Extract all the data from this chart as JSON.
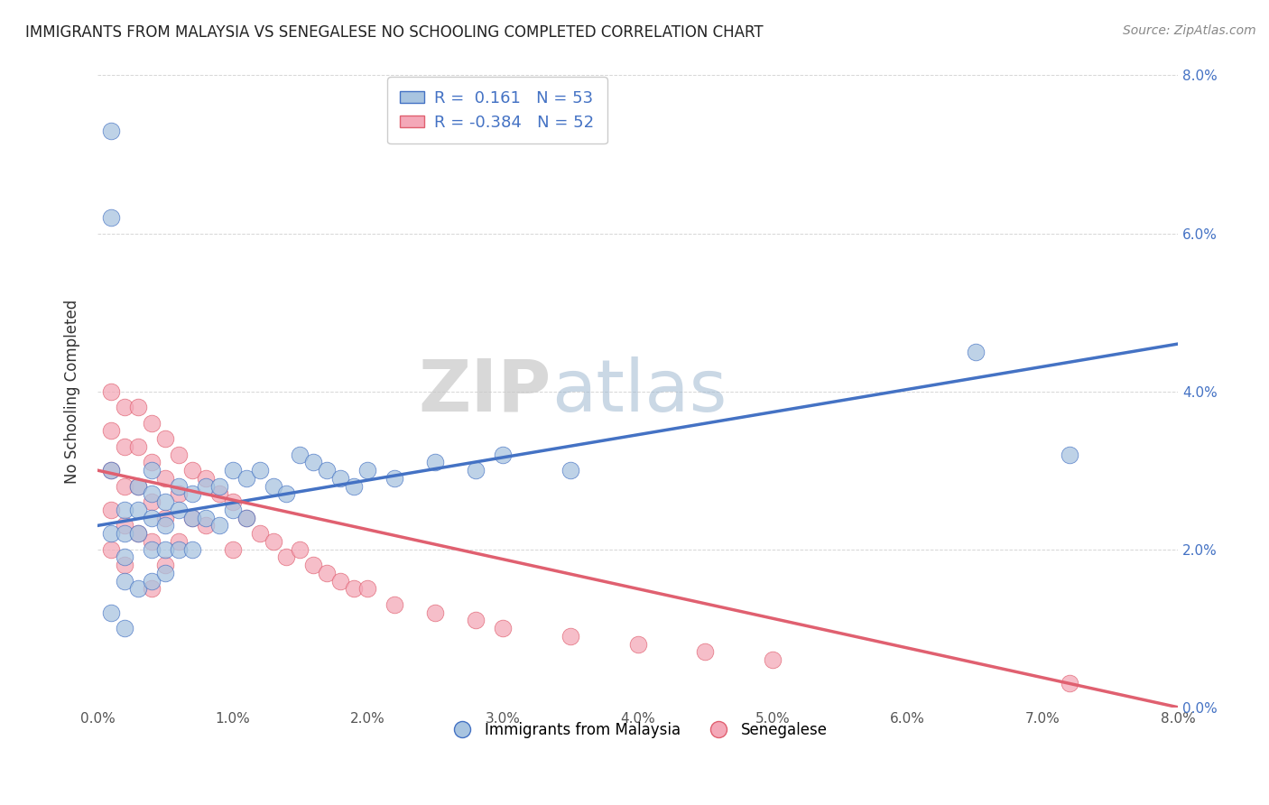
{
  "title": "IMMIGRANTS FROM MALAYSIA VS SENEGALESE NO SCHOOLING COMPLETED CORRELATION CHART",
  "source": "Source: ZipAtlas.com",
  "ylabel": "No Schooling Completed",
  "xlabel": "",
  "xlim": [
    0.0,
    0.08
  ],
  "ylim": [
    0.0,
    0.08
  ],
  "xticks": [
    0.0,
    0.01,
    0.02,
    0.03,
    0.04,
    0.05,
    0.06,
    0.07,
    0.08
  ],
  "yticks": [
    0.0,
    0.02,
    0.04,
    0.06,
    0.08
  ],
  "xtick_labels": [
    "0.0%",
    "1.0%",
    "2.0%",
    "3.0%",
    "4.0%",
    "5.0%",
    "6.0%",
    "7.0%",
    "8.0%"
  ],
  "ytick_labels": [
    "0.0%",
    "2.0%",
    "4.0%",
    "6.0%",
    "8.0%"
  ],
  "blue_R": 0.161,
  "blue_N": 53,
  "pink_R": -0.384,
  "pink_N": 52,
  "blue_color": "#a8c4e0",
  "pink_color": "#f4a8b8",
  "blue_line_color": "#4472c4",
  "pink_line_color": "#e06070",
  "legend_blue_label": "Immigrants from Malaysia",
  "legend_pink_label": "Senegalese",
  "watermark_zip": "ZIP",
  "watermark_atlas": "atlas",
  "blue_scatter_x": [
    0.001,
    0.001,
    0.001,
    0.001,
    0.001,
    0.002,
    0.002,
    0.002,
    0.002,
    0.002,
    0.003,
    0.003,
    0.003,
    0.003,
    0.004,
    0.004,
    0.004,
    0.004,
    0.004,
    0.005,
    0.005,
    0.005,
    0.005,
    0.006,
    0.006,
    0.006,
    0.007,
    0.007,
    0.007,
    0.008,
    0.008,
    0.009,
    0.009,
    0.01,
    0.01,
    0.011,
    0.011,
    0.012,
    0.013,
    0.014,
    0.015,
    0.016,
    0.017,
    0.018,
    0.019,
    0.02,
    0.022,
    0.025,
    0.028,
    0.03,
    0.035,
    0.065,
    0.072
  ],
  "blue_scatter_y": [
    0.073,
    0.062,
    0.03,
    0.022,
    0.012,
    0.025,
    0.022,
    0.019,
    0.016,
    0.01,
    0.028,
    0.025,
    0.022,
    0.015,
    0.03,
    0.027,
    0.024,
    0.02,
    0.016,
    0.026,
    0.023,
    0.02,
    0.017,
    0.028,
    0.025,
    0.02,
    0.027,
    0.024,
    0.02,
    0.028,
    0.024,
    0.028,
    0.023,
    0.03,
    0.025,
    0.029,
    0.024,
    0.03,
    0.028,
    0.027,
    0.032,
    0.031,
    0.03,
    0.029,
    0.028,
    0.03,
    0.029,
    0.031,
    0.03,
    0.032,
    0.03,
    0.045,
    0.032
  ],
  "pink_scatter_x": [
    0.001,
    0.001,
    0.001,
    0.001,
    0.001,
    0.002,
    0.002,
    0.002,
    0.002,
    0.002,
    0.003,
    0.003,
    0.003,
    0.003,
    0.004,
    0.004,
    0.004,
    0.004,
    0.004,
    0.005,
    0.005,
    0.005,
    0.005,
    0.006,
    0.006,
    0.006,
    0.007,
    0.007,
    0.008,
    0.008,
    0.009,
    0.01,
    0.01,
    0.011,
    0.012,
    0.013,
    0.014,
    0.015,
    0.016,
    0.017,
    0.018,
    0.019,
    0.02,
    0.022,
    0.025,
    0.028,
    0.03,
    0.035,
    0.04,
    0.045,
    0.05,
    0.072
  ],
  "pink_scatter_y": [
    0.04,
    0.035,
    0.03,
    0.025,
    0.02,
    0.038,
    0.033,
    0.028,
    0.023,
    0.018,
    0.038,
    0.033,
    0.028,
    0.022,
    0.036,
    0.031,
    0.026,
    0.021,
    0.015,
    0.034,
    0.029,
    0.024,
    0.018,
    0.032,
    0.027,
    0.021,
    0.03,
    0.024,
    0.029,
    0.023,
    0.027,
    0.026,
    0.02,
    0.024,
    0.022,
    0.021,
    0.019,
    0.02,
    0.018,
    0.017,
    0.016,
    0.015,
    0.015,
    0.013,
    0.012,
    0.011,
    0.01,
    0.009,
    0.008,
    0.007,
    0.006,
    0.003
  ],
  "blue_trend_x": [
    0.0,
    0.08
  ],
  "blue_trend_y": [
    0.023,
    0.046
  ],
  "pink_trend_x": [
    0.0,
    0.08
  ],
  "pink_trend_y": [
    0.03,
    0.0
  ]
}
